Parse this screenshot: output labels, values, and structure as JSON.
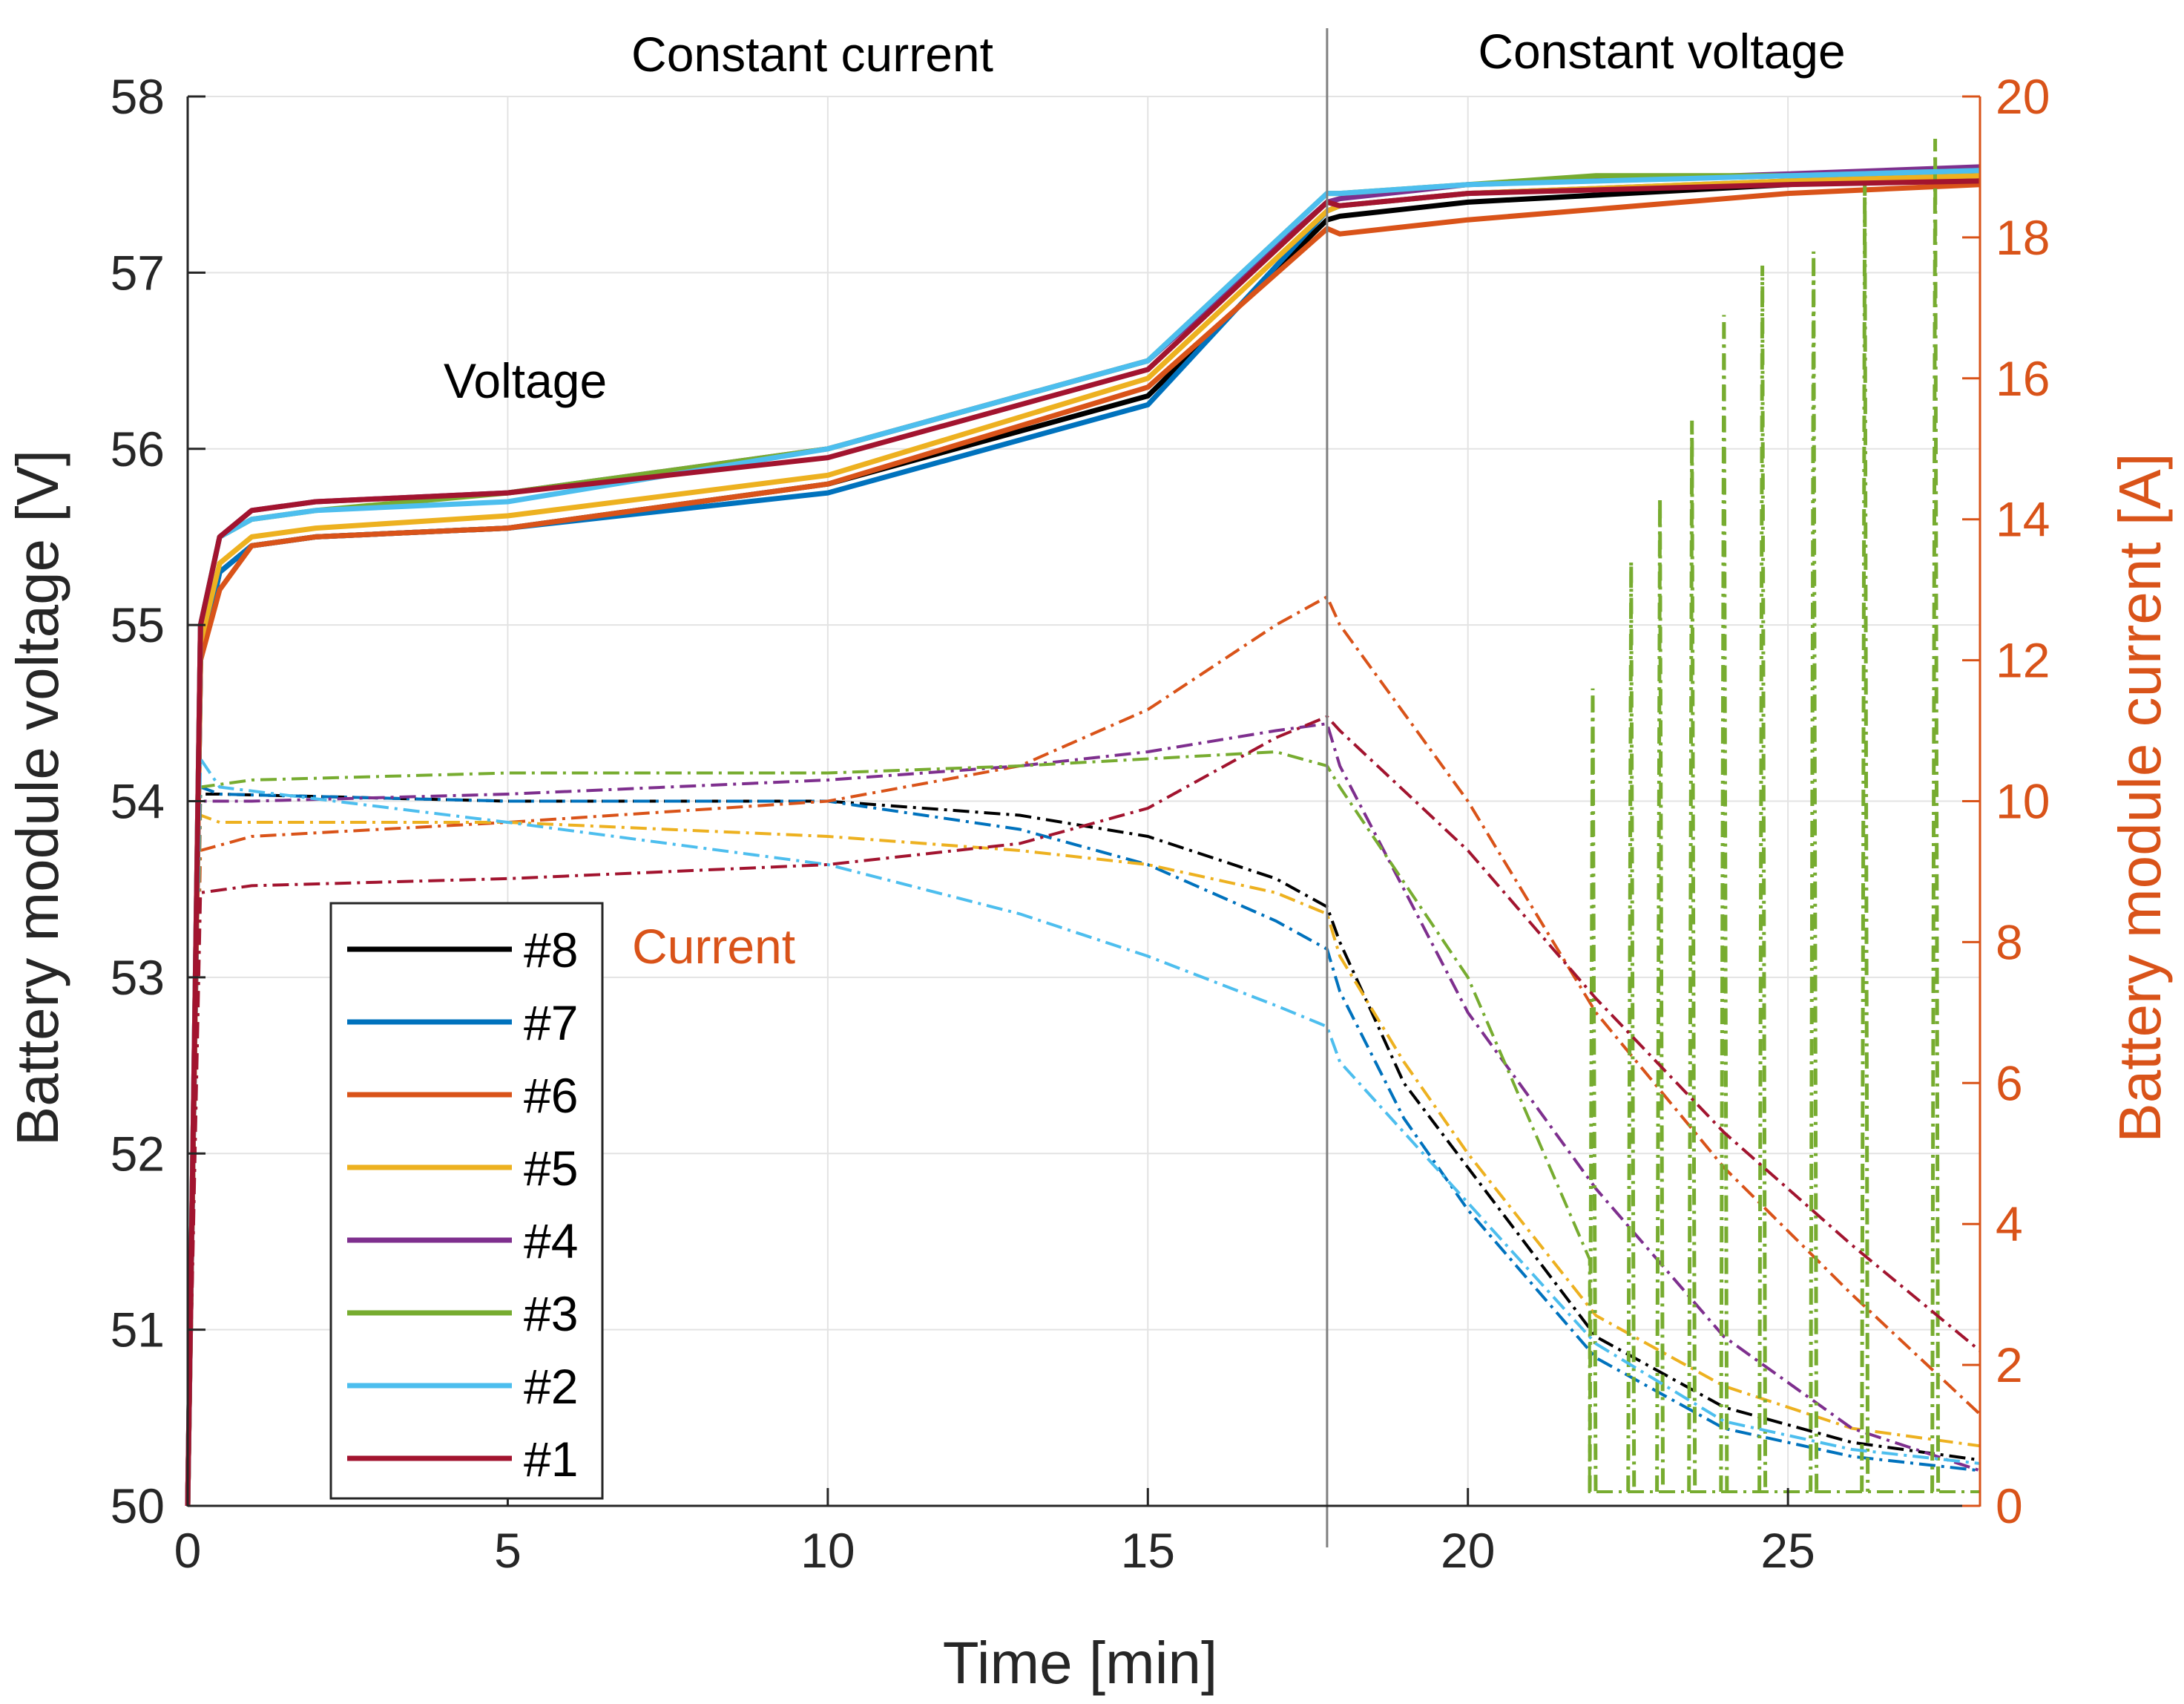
{
  "chart_data": {
    "type": "line",
    "title": "",
    "xlabel": "Time [min]",
    "ylabel_left": "Battery module voltage [V]",
    "ylabel_right": "Battery module current [A]",
    "xlim": [
      0,
      28
    ],
    "ylim_left": [
      50,
      58
    ],
    "ylim_right": [
      0,
      20
    ],
    "grid": true,
    "x_ticks": [
      "0",
      "5",
      "10",
      "15",
      "20",
      "25"
    ],
    "y_ticks_left": [
      "50",
      "51",
      "52",
      "53",
      "54",
      "55",
      "56",
      "57",
      "58"
    ],
    "y_ticks_right": [
      "0",
      "2",
      "4",
      "6",
      "8",
      "10",
      "12",
      "14",
      "16",
      "18",
      "20"
    ],
    "phase_boundary_min": 17.8,
    "phase_labels": {
      "left": "Constant current",
      "right": "Constant voltage"
    },
    "annotations": {
      "voltage": "Voltage",
      "current": "Current"
    },
    "legend_position": "lower-left",
    "colors": {
      "axis_right": "#D95319",
      "current_label": "#D95319",
      "boundary": "#808080",
      "grid": "#e3e3e3",
      "axis": "#262626"
    },
    "series": [
      {
        "name": "#8",
        "color": "#000000",
        "voltage": [
          [
            0,
            50
          ],
          [
            0.2,
            54.8
          ],
          [
            0.5,
            55.3
          ],
          [
            1,
            55.45
          ],
          [
            2,
            55.5
          ],
          [
            5,
            55.55
          ],
          [
            10,
            55.8
          ],
          [
            15,
            56.3
          ],
          [
            17.8,
            57.3
          ],
          [
            18,
            57.32
          ],
          [
            20,
            57.4
          ],
          [
            25,
            57.5
          ],
          [
            28,
            57.55
          ]
        ],
        "current": [
          [
            0,
            0
          ],
          [
            0.2,
            10.1
          ],
          [
            0.5,
            10.1
          ],
          [
            5,
            10
          ],
          [
            10,
            10
          ],
          [
            13,
            9.8
          ],
          [
            15,
            9.5
          ],
          [
            17,
            8.9
          ],
          [
            17.8,
            8.5
          ],
          [
            18,
            8
          ],
          [
            19,
            6
          ],
          [
            20,
            4.8
          ],
          [
            22,
            2.4
          ],
          [
            24,
            1.4
          ],
          [
            26,
            0.9
          ],
          [
            28,
            0.65
          ]
        ]
      },
      {
        "name": "#7",
        "color": "#0072BD",
        "voltage": [
          [
            0,
            50
          ],
          [
            0.2,
            54.8
          ],
          [
            0.5,
            55.3
          ],
          [
            1,
            55.45
          ],
          [
            2,
            55.5
          ],
          [
            5,
            55.55
          ],
          [
            10,
            55.75
          ],
          [
            15,
            56.25
          ],
          [
            17.8,
            57.35
          ],
          [
            18,
            57.38
          ],
          [
            20,
            57.45
          ],
          [
            25,
            57.52
          ],
          [
            28,
            57.55
          ]
        ],
        "current": [
          [
            0,
            0
          ],
          [
            0.2,
            10.2
          ],
          [
            0.5,
            10.1
          ],
          [
            5,
            10
          ],
          [
            10,
            10
          ],
          [
            13,
            9.6
          ],
          [
            15,
            9.1
          ],
          [
            17,
            8.3
          ],
          [
            17.8,
            7.9
          ],
          [
            18,
            7.3
          ],
          [
            19,
            5.5
          ],
          [
            20,
            4.2
          ],
          [
            22,
            2.1
          ],
          [
            24,
            1.1
          ],
          [
            26,
            0.7
          ],
          [
            28,
            0.5
          ]
        ]
      },
      {
        "name": "#6",
        "color": "#D95319",
        "voltage": [
          [
            0,
            50
          ],
          [
            0.2,
            54.8
          ],
          [
            0.5,
            55.2
          ],
          [
            1,
            55.45
          ],
          [
            2,
            55.5
          ],
          [
            5,
            55.55
          ],
          [
            10,
            55.8
          ],
          [
            15,
            56.35
          ],
          [
            17.8,
            57.25
          ],
          [
            18,
            57.22
          ],
          [
            20,
            57.3
          ],
          [
            25,
            57.45
          ],
          [
            28,
            57.5
          ]
        ],
        "current": [
          [
            0,
            0
          ],
          [
            0.2,
            9.3
          ],
          [
            1,
            9.5
          ],
          [
            5,
            9.7
          ],
          [
            10,
            10
          ],
          [
            13,
            10.5
          ],
          [
            15,
            11.3
          ],
          [
            17,
            12.5
          ],
          [
            17.8,
            12.9
          ],
          [
            18,
            12.5
          ],
          [
            20,
            10
          ],
          [
            22,
            7
          ],
          [
            24,
            4.8
          ],
          [
            26,
            3
          ],
          [
            28,
            1.3
          ]
        ]
      },
      {
        "name": "#5",
        "color": "#EDB120",
        "voltage": [
          [
            0,
            50
          ],
          [
            0.2,
            54.9
          ],
          [
            0.5,
            55.35
          ],
          [
            1,
            55.5
          ],
          [
            2,
            55.55
          ],
          [
            5,
            55.62
          ],
          [
            10,
            55.85
          ],
          [
            15,
            56.4
          ],
          [
            17.8,
            57.35
          ],
          [
            18,
            57.38
          ],
          [
            20,
            57.45
          ],
          [
            25,
            57.52
          ],
          [
            28,
            57.55
          ]
        ],
        "current": [
          [
            0,
            0
          ],
          [
            0.2,
            9.8
          ],
          [
            0.5,
            9.7
          ],
          [
            5,
            9.7
          ],
          [
            10,
            9.5
          ],
          [
            13,
            9.3
          ],
          [
            15,
            9.1
          ],
          [
            17,
            8.7
          ],
          [
            17.8,
            8.4
          ],
          [
            18,
            7.8
          ],
          [
            19,
            6.3
          ],
          [
            20,
            5
          ],
          [
            22,
            2.7
          ],
          [
            24,
            1.7
          ],
          [
            26,
            1.1
          ],
          [
            28,
            0.85
          ]
        ]
      },
      {
        "name": "#4",
        "color": "#7E2F8E",
        "voltage": [
          [
            0,
            50
          ],
          [
            0.2,
            55
          ],
          [
            0.5,
            55.5
          ],
          [
            1,
            55.65
          ],
          [
            2,
            55.7
          ],
          [
            5,
            55.75
          ],
          [
            10,
            56
          ],
          [
            15,
            56.5
          ],
          [
            17.8,
            57.4
          ],
          [
            18,
            57.42
          ],
          [
            20,
            57.5
          ],
          [
            25,
            57.56
          ],
          [
            28,
            57.6
          ]
        ],
        "current": [
          [
            0,
            0
          ],
          [
            0.2,
            10
          ],
          [
            1,
            10
          ],
          [
            5,
            10.1
          ],
          [
            10,
            10.3
          ],
          [
            13,
            10.5
          ],
          [
            15,
            10.7
          ],
          [
            17,
            11
          ],
          [
            17.8,
            11.1
          ],
          [
            18,
            10.5
          ],
          [
            20,
            7
          ],
          [
            22,
            4.5
          ],
          [
            24,
            2.4
          ],
          [
            26,
            1.1
          ],
          [
            28,
            0.5
          ]
        ]
      },
      {
        "name": "#3",
        "color": "#77AC30",
        "voltage": [
          [
            0,
            50
          ],
          [
            0.2,
            55
          ],
          [
            0.5,
            55.5
          ],
          [
            1,
            55.6
          ],
          [
            2,
            55.65
          ],
          [
            5,
            55.75
          ],
          [
            10,
            56
          ],
          [
            15,
            56.5
          ],
          [
            17.8,
            57.45
          ],
          [
            18,
            57.45
          ],
          [
            20,
            57.5
          ],
          [
            22,
            57.55
          ],
          [
            25,
            57.55
          ],
          [
            28,
            57.58
          ]
        ],
        "current": [
          [
            0,
            0
          ],
          [
            0.2,
            10.2
          ],
          [
            1,
            10.3
          ],
          [
            5,
            10.4
          ],
          [
            10,
            10.4
          ],
          [
            13,
            10.5
          ],
          [
            15,
            10.6
          ],
          [
            17,
            10.7
          ],
          [
            17.8,
            10.5
          ],
          [
            18,
            10.2
          ],
          [
            20,
            7.5
          ],
          [
            21.9,
            3.5
          ],
          [
            21.9,
            0.2
          ],
          [
            28,
            0.2
          ]
        ],
        "current_spikes": [
          [
            21.95,
            11.6
          ],
          [
            22.55,
            13.4
          ],
          [
            23.0,
            14.3
          ],
          [
            23.5,
            15.4
          ],
          [
            24.0,
            16.9
          ],
          [
            24.6,
            17.6
          ],
          [
            25.4,
            17.8
          ],
          [
            26.2,
            18.8
          ],
          [
            27.3,
            19.4
          ]
        ]
      },
      {
        "name": "#2",
        "color": "#4DBEEE",
        "voltage": [
          [
            0,
            50
          ],
          [
            0.2,
            55
          ],
          [
            0.5,
            55.5
          ],
          [
            1,
            55.6
          ],
          [
            2,
            55.65
          ],
          [
            5,
            55.7
          ],
          [
            10,
            56
          ],
          [
            15,
            56.5
          ],
          [
            17.8,
            57.45
          ],
          [
            18,
            57.45
          ],
          [
            20,
            57.5
          ],
          [
            25,
            57.55
          ],
          [
            28,
            57.58
          ]
        ],
        "current": [
          [
            0,
            0
          ],
          [
            0.2,
            10.6
          ],
          [
            0.5,
            10.2
          ],
          [
            5,
            9.7
          ],
          [
            10,
            9.1
          ],
          [
            13,
            8.4
          ],
          [
            15,
            7.8
          ],
          [
            17,
            7.1
          ],
          [
            17.8,
            6.8
          ],
          [
            18,
            6.3
          ],
          [
            20,
            4.3
          ],
          [
            22,
            2.3
          ],
          [
            24,
            1.2
          ],
          [
            26,
            0.8
          ],
          [
            28,
            0.6
          ]
        ]
      },
      {
        "name": "#1",
        "color": "#A2142F",
        "voltage": [
          [
            0,
            50
          ],
          [
            0.2,
            55
          ],
          [
            0.5,
            55.5
          ],
          [
            1,
            55.65
          ],
          [
            2,
            55.7
          ],
          [
            5,
            55.75
          ],
          [
            10,
            55.95
          ],
          [
            15,
            56.45
          ],
          [
            17.8,
            57.4
          ],
          [
            18,
            57.38
          ],
          [
            20,
            57.45
          ],
          [
            25,
            57.5
          ],
          [
            28,
            57.52
          ]
        ],
        "current": [
          [
            0,
            0
          ],
          [
            0.2,
            8.7
          ],
          [
            1,
            8.8
          ],
          [
            5,
            8.9
          ],
          [
            10,
            9.1
          ],
          [
            13,
            9.4
          ],
          [
            15,
            9.9
          ],
          [
            17,
            10.9
          ],
          [
            17.8,
            11.2
          ],
          [
            18,
            11
          ],
          [
            20,
            9.3
          ],
          [
            22,
            7.2
          ],
          [
            24,
            5.3
          ],
          [
            26,
            3.7
          ],
          [
            28,
            2.2
          ]
        ]
      }
    ]
  }
}
